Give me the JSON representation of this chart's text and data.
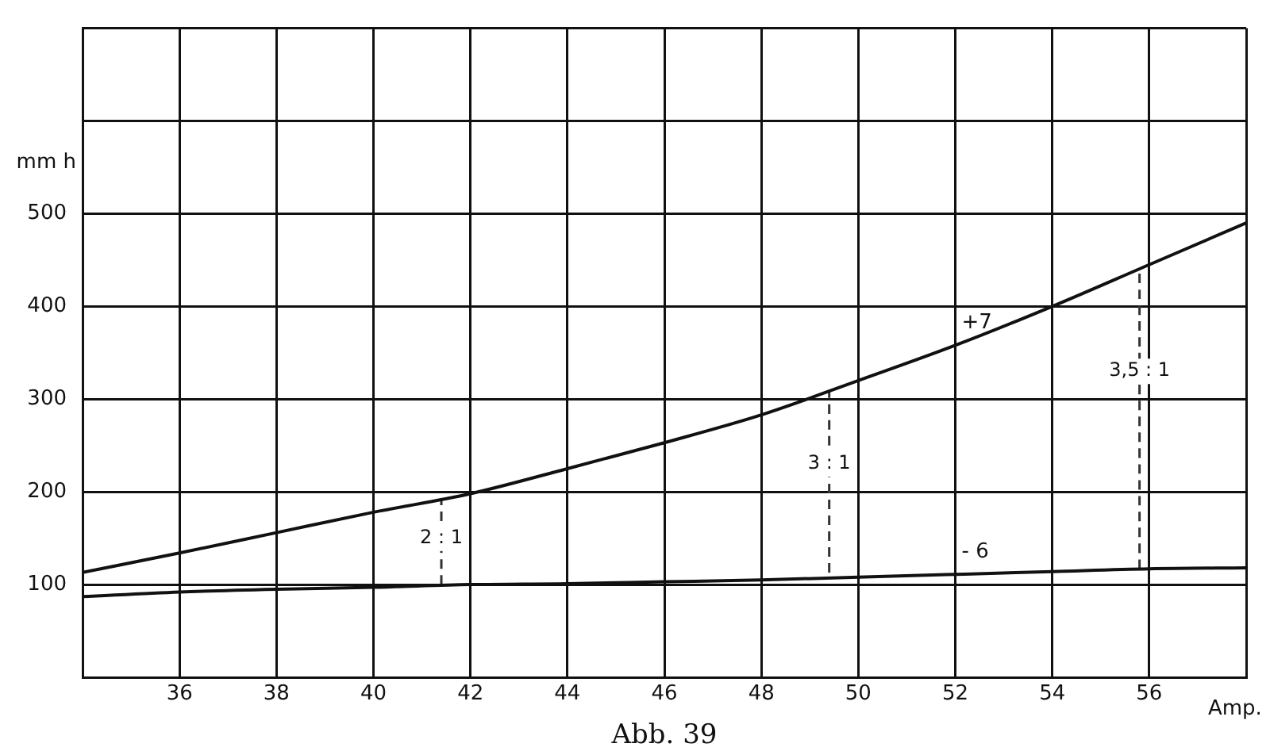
{
  "chart_data": {
    "type": "line",
    "xlabel": "Amp.",
    "ylabel": "mm h",
    "x": [
      34,
      36,
      38,
      40,
      42,
      44,
      46,
      48,
      50,
      52,
      54,
      56,
      58
    ],
    "series": [
      {
        "name": "+7",
        "color": "#111111",
        "values": [
          113,
          134,
          156,
          178,
          198,
          225,
          253,
          283,
          320,
          358,
          400,
          445,
          490
        ]
      },
      {
        "name": "- 6",
        "color": "#111111",
        "values": [
          87,
          92,
          95,
          97,
          100,
          101,
          103,
          105,
          108,
          111,
          114,
          117,
          118
        ]
      },
      {
        "color": "#333333",
        "line_style": "dashed",
        "x": [
          41.4,
          41.4
        ],
        "values": [
          100,
          193
        ]
      },
      {
        "color": "#333333",
        "line_style": "dashed",
        "x": [
          49.4,
          49.4
        ],
        "values": [
          113,
          308
        ]
      },
      {
        "color": "#333333",
        "line_style": "dashed",
        "x": [
          55.8,
          55.8
        ],
        "values": [
          117,
          440
        ]
      }
    ],
    "xlim": [
      34,
      58
    ],
    "xticks": [
      {
        "value": 34,
        "label": null
      },
      36,
      38,
      40,
      42,
      44,
      46,
      48,
      50,
      52,
      54,
      56,
      {
        "value": 58,
        "label": null
      }
    ],
    "ylim": [
      0,
      700
    ],
    "yticks": [
      {
        "value": 0,
        "label": null
      },
      100,
      200,
      300,
      400,
      500,
      {
        "value": 600,
        "label": null
      },
      {
        "value": 700,
        "label": null
      }
    ],
    "grid": true,
    "legend": false,
    "marker": "none",
    "line_style": "solid",
    "annotations": [
      {
        "text": "2 : 1",
        "x": 41.4,
        "y": 150
      },
      {
        "text": "3 : 1",
        "x": 49.4,
        "y": 230
      },
      {
        "text": "3,5 : 1",
        "x": 55.8,
        "y": 330
      },
      "Abb. 39"
    ]
  }
}
